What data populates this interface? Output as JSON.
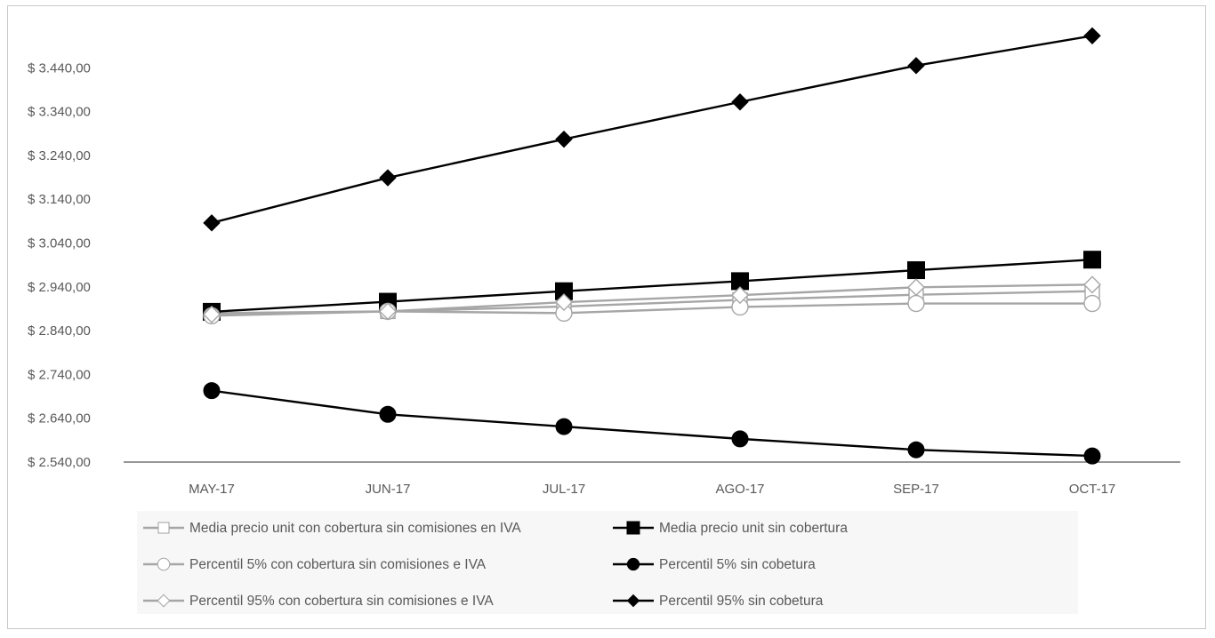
{
  "chart_data": {
    "type": "line",
    "title": "",
    "xlabel": "",
    "ylabel": "",
    "categories": [
      "MAY-17",
      "JUN-17",
      "JUL-17",
      "AGO-17",
      "SEP-17",
      "OCT-17"
    ],
    "y_ticks": [
      "$ 2.540,00",
      "$ 2.640,00",
      "$ 2.740,00",
      "$ 2.840,00",
      "$ 2.940,00",
      "$ 3.040,00",
      "$ 3.140,00",
      "$ 3.240,00",
      "$ 3.340,00",
      "$ 3.440,00"
    ],
    "ylim": [
      2540,
      3540
    ],
    "grid": false,
    "legend_position": "bottom",
    "series": [
      {
        "name": "Media precio unit con cobertura sin comisiones en IVA",
        "values": [
          2880,
          2884,
          2895,
          2910,
          2922,
          2930
        ],
        "color": "#a6a6a6",
        "marker": "square-open"
      },
      {
        "name": "Media precio unit sin cobertura",
        "values": [
          2883,
          2906,
          2930,
          2953,
          2978,
          3002
        ],
        "color": "#000000",
        "marker": "square-filled"
      },
      {
        "name": "Percentil 5% con cobertura sin comisiones e IVA",
        "values": [
          2874,
          2884,
          2880,
          2894,
          2902,
          2902
        ],
        "color": "#a6a6a6",
        "marker": "circle-open"
      },
      {
        "name": "Percentil 5% sin cobetura",
        "values": [
          2703,
          2649,
          2621,
          2593,
          2568,
          2554
        ],
        "color": "#000000",
        "marker": "circle-filled"
      },
      {
        "name": "Percentil 95% con cobertura sin comisiones e IVA",
        "values": [
          2877,
          2884,
          2905,
          2921,
          2939,
          2945
        ],
        "color": "#a6a6a6",
        "marker": "diamond-open"
      },
      {
        "name": "Percentil 95% sin cobetura",
        "values": [
          3086,
          3189,
          3277,
          3362,
          3445,
          3513
        ],
        "color": "#000000",
        "marker": "diamond-filled"
      }
    ]
  }
}
